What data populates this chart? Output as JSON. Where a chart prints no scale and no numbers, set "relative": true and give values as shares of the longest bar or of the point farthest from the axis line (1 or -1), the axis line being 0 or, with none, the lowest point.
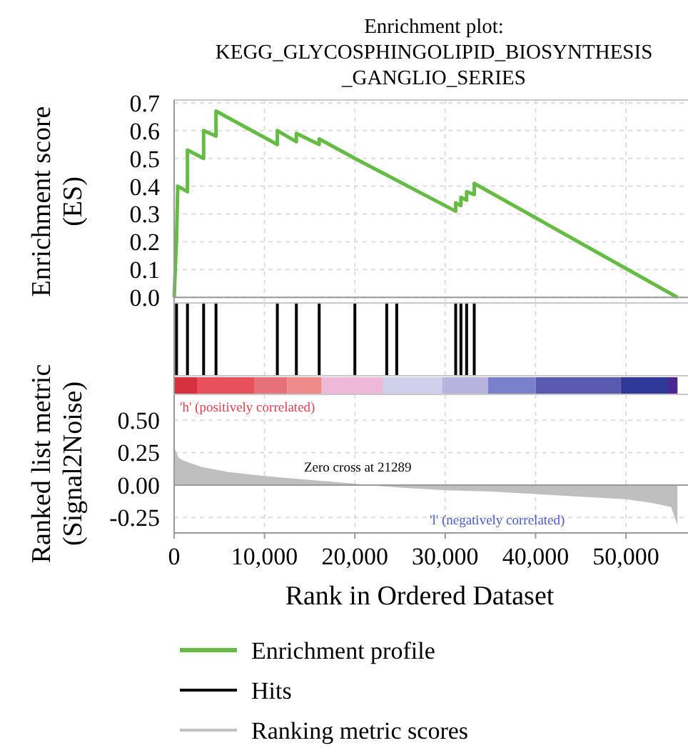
{
  "chart_data": [
    {
      "type": "line",
      "title": "Enrichment plot:\nKEGG_GLYCOSPHINGOLIPID_BIOSYNTHESIS\n_GANGLIO_SERIES",
      "ylabel": "Enrichment score\n(ES)",
      "xlim": [
        0,
        57500
      ],
      "xticks": [
        0,
        10000,
        20000,
        30000,
        40000,
        50000
      ],
      "ylim": [
        -0.02,
        0.71
      ],
      "yticks": [
        {
          "value": 0,
          "label": "0.0"
        },
        0.1,
        0.2,
        0.3,
        0.4,
        0.5,
        0.6,
        0.7
      ],
      "tick_labels": "y",
      "grid": true,
      "legend": "bottom",
      "marker": "none",
      "line_style": "solid",
      "series": [
        {
          "name": "Enrichment profile",
          "color": "#66bb44",
          "x": [
            0,
            263,
            400,
            1474,
            1474,
            3263,
            3263,
            4632,
            4632,
            11421,
            11421,
            13526,
            13526,
            16053,
            16053,
            20000,
            31158,
            31158,
            31737,
            31737,
            32368,
            32368,
            33211,
            33211,
            55700
          ],
          "values": [
            0,
            0.21,
            0.4,
            0.38,
            0.53,
            0.5,
            0.6,
            0.58,
            0.67,
            0.55,
            0.6,
            0.56,
            0.59,
            0.55,
            0.57,
            0.5,
            0.31,
            0.34,
            0.33,
            0.36,
            0.35,
            0.38,
            0.37,
            0.41,
            0
          ]
        }
      ]
    },
    {
      "type": "bar",
      "relative": true,
      "xlim": [
        0,
        57500
      ],
      "xticks": [
        0,
        10000,
        20000,
        30000,
        40000,
        50000
      ],
      "tick_labels": false,
      "grid": "x",
      "legend": "bottom",
      "series": [
        {
          "name": "Hits",
          "color": "#000000",
          "x": [
            263,
            1474,
            3263,
            4632,
            11421,
            13526,
            16053,
            20000,
            23526,
            24632,
            31158,
            31737,
            32368,
            33211
          ],
          "values": [
            1,
            1,
            1,
            1,
            1,
            1,
            1,
            1,
            1,
            1,
            1,
            1,
            1,
            1
          ]
        }
      ]
    },
    {
      "type": "area",
      "xlabel": "Rank in Ordered Dataset",
      "ylabel": "Ranked list metric\n(Signal2Noise)",
      "xlim": [
        0,
        57500
      ],
      "xticks": [
        0,
        {
          "value": 10000,
          "label": "10,000"
        },
        {
          "value": 20000,
          "label": "20,000"
        },
        {
          "value": 30000,
          "label": "30,000"
        },
        {
          "value": 40000,
          "label": "40,000"
        },
        {
          "value": 50000,
          "label": "50,000"
        }
      ],
      "ylim": [
        -0.37,
        0.7
      ],
      "yticks": [
        {
          "value": 0.5,
          "label": "0.50"
        },
        {
          "value": 0.25,
          "label": "0.25"
        },
        {
          "value": 0,
          "label": "0.00"
        },
        {
          "value": -0.25,
          "label": "-0.25"
        }
      ],
      "grid": true,
      "legend": "bottom",
      "annotations": [
        "'h' (positively correlated)",
        "Zero cross at 21289",
        "'l' (negatively correlated)"
      ],
      "series": [
        {
          "name": "Ranking metric scores",
          "color": "#bfbfbf",
          "x": [
            0,
            500,
            1000,
            3000,
            6000,
            10000,
            15000,
            20000,
            21289,
            25000,
            30000,
            35000,
            40000,
            45000,
            50000,
            53000,
            55000,
            55700
          ],
          "values": [
            0.29,
            0.21,
            0.19,
            0.14,
            0.1,
            0.07,
            0.04,
            0.01,
            0,
            -0.02,
            -0.04,
            -0.05,
            -0.07,
            -0.09,
            -0.11,
            -0.14,
            -0.17,
            -0.31
          ]
        }
      ]
    }
  ]
}
